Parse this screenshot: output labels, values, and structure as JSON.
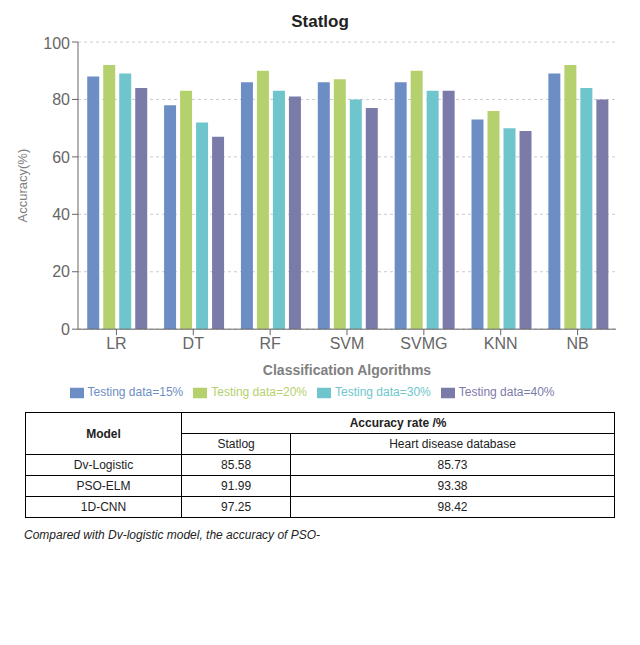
{
  "chart_data": {
    "type": "bar",
    "title": "Statlog",
    "categories": [
      "LR",
      "DT",
      "RF",
      "SVM",
      "SVMG",
      "KNN",
      "NB"
    ],
    "series": [
      {
        "name": "Testing data=15%",
        "color": "#6d8ec4",
        "values": [
          88,
          78,
          86,
          86,
          86,
          73,
          89
        ]
      },
      {
        "name": "Testing data=20%",
        "color": "#b5d16e",
        "values": [
          92,
          83,
          90,
          87,
          90,
          76,
          92
        ]
      },
      {
        "name": "Testing data=30%",
        "color": "#6ec6cc",
        "values": [
          89,
          72,
          83,
          80,
          83,
          70,
          84
        ]
      },
      {
        "name": "Testing data=40%",
        "color": "#7b7baa",
        "values": [
          84,
          67,
          81,
          77,
          83,
          69,
          80
        ]
      }
    ],
    "xlabel": "Classification Algorithms",
    "ylabel": "Accuracy(%)",
    "ylim": [
      0,
      100
    ],
    "yticks": [
      0,
      20,
      40,
      60,
      80,
      100
    ],
    "grid": true,
    "legend": "bottom"
  },
  "table": {
    "header": [
      [
        "Model",
        "Accuracy rate /%"
      ],
      [
        "Statlog",
        "Heart disease database"
      ]
    ],
    "rows": [
      [
        "Dv-Logistic",
        "85.58",
        "85.73"
      ],
      [
        "PSO-ELM",
        "91.99",
        "93.38"
      ],
      [
        "1D-CNN",
        "97.25",
        "98.42"
      ]
    ]
  },
  "caption": "Compared with Dv-logistic model, the accuracy of PSO-"
}
